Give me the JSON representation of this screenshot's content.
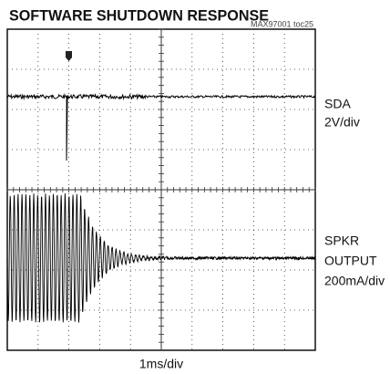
{
  "title": "SOFTWARE SHUTDOWN RESPONSE",
  "figure_id": "MAX97001 toc25",
  "channels": [
    {
      "name": "SDA",
      "scale": "2V/div"
    },
    {
      "name_lines": [
        "SPKR",
        "OUTPUT"
      ],
      "scale": "200mA/div"
    }
  ],
  "time_scale": "1ms/div"
}
